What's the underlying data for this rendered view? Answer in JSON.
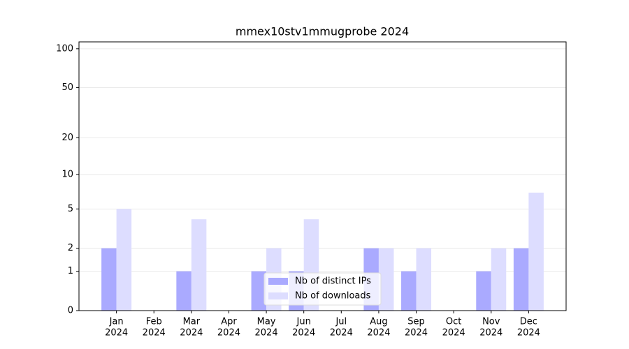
{
  "chart_data": {
    "type": "bar",
    "title": "mmex10stv1mmugprobe 2024",
    "categories": [
      [
        "Jan",
        "2024"
      ],
      [
        "Feb",
        "2024"
      ],
      [
        "Mar",
        "2024"
      ],
      [
        "Apr",
        "2024"
      ],
      [
        "May",
        "2024"
      ],
      [
        "Jun",
        "2024"
      ],
      [
        "Jul",
        "2024"
      ],
      [
        "Aug",
        "2024"
      ],
      [
        "Sep",
        "2024"
      ],
      [
        "Oct",
        "2024"
      ],
      [
        "Nov",
        "2024"
      ],
      [
        "Dec",
        "2024"
      ]
    ],
    "series": [
      {
        "name": "Nb of distinct IPs",
        "color": "#aaaaff",
        "values": [
          2,
          0,
          1,
          0,
          1,
          1,
          0,
          2,
          1,
          0,
          1,
          2
        ]
      },
      {
        "name": "Nb of downloads",
        "color": "#ddddff",
        "values": [
          5,
          0,
          4,
          0,
          2,
          4,
          0,
          2,
          2,
          0,
          2,
          7
        ]
      }
    ],
    "yscale": "log1p",
    "ylim": [
      0,
      113
    ],
    "yticks": [
      0,
      1,
      2,
      5,
      10,
      20,
      50,
      100
    ],
    "grid": true,
    "legend": "lower center"
  }
}
